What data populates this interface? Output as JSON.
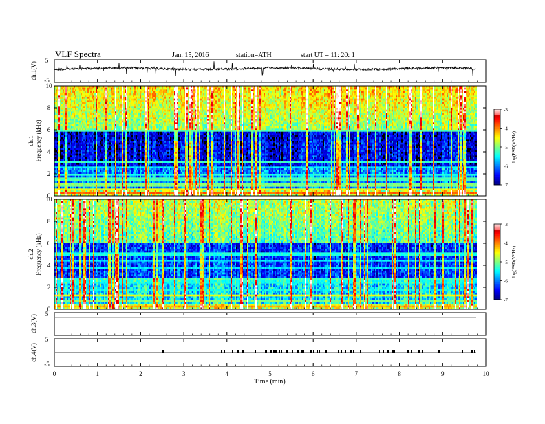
{
  "header": {
    "title": "VLF  Spectra",
    "date": "Jan. 15, 2016",
    "station": "station=ATH",
    "start": "start  UT  =    11: 20: 1"
  },
  "chart_data": [
    {
      "type": "line",
      "panel": "ch1-waveform",
      "ylabel": "ch.1(V)",
      "yticks": [
        "5",
        "-5"
      ],
      "ylim": [
        -5,
        5
      ],
      "trace_color": "#000000",
      "baseline": 0
    },
    {
      "type": "heatmap",
      "panel": "ch1-spectrogram",
      "ylabel_channel": "ch.1",
      "ylabel": "Frequency  (kHz)",
      "ylim": [
        0,
        10
      ],
      "yticks": [
        "0",
        "2",
        "4",
        "6",
        "8",
        "10"
      ],
      "xlim": [
        0,
        10
      ],
      "colorbar": {
        "label": "log(PSD(V²/Hz)",
        "range": [
          -7,
          -3
        ],
        "ticks": [
          "-3",
          "-4",
          "-5",
          "-6",
          "-7"
        ]
      }
    },
    {
      "type": "heatmap",
      "panel": "ch2-spectrogram",
      "ylabel_channel": "ch.2",
      "ylabel": "Frequency  (kHz)",
      "ylim": [
        0,
        10
      ],
      "yticks": [
        "0",
        "2",
        "4",
        "6",
        "8",
        "10"
      ],
      "xlim": [
        0,
        10
      ],
      "colorbar": {
        "label": "log(PSD(V²/Hz)",
        "range": [
          -7,
          -3
        ],
        "ticks": [
          "-3",
          "-4",
          "-5",
          "-6",
          "-7"
        ]
      }
    },
    {
      "type": "line",
      "panel": "ch3-waveform",
      "ylabel": "ch.3(V)",
      "yticks": [
        "5"
      ],
      "ylim": [
        -5,
        5
      ],
      "trace_color": "#9a9a9a",
      "baseline": 0
    },
    {
      "type": "line",
      "panel": "ch4-waveform",
      "ylabel": "ch.4(V)",
      "yticks": [
        "5",
        "-5"
      ],
      "ylim": [
        -5,
        5
      ],
      "trace_color": "#000000",
      "baseline": 0
    }
  ],
  "xaxis": {
    "label": "Time  (min)",
    "range": [
      0,
      10
    ],
    "ticks": [
      "0",
      "1",
      "2",
      "3",
      "4",
      "5",
      "6",
      "7",
      "8",
      "9",
      "10"
    ]
  }
}
